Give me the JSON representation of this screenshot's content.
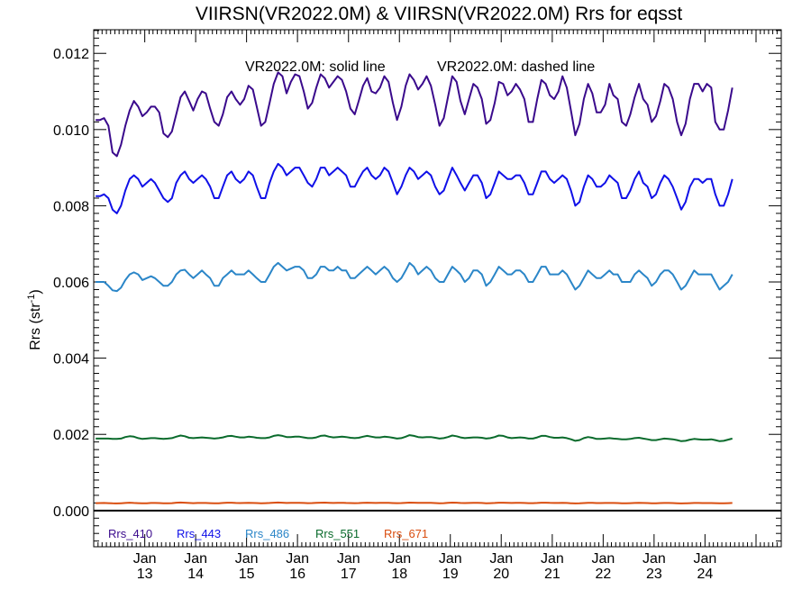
{
  "chart_data": {
    "type": "line",
    "title": "VIIRSN(VR2022.0M) & VIIRSN(VR2022.0M)  Rrs for eqsst",
    "annotation_solid": "VR2022.0M: solid line",
    "annotation_dashed": "VR2022.0M: dashed line",
    "ylabel_main": "Rrs (str",
    "ylabel_sup": "-1",
    "ylabel_close": ")",
    "ylim": [
      -0.00095,
      0.01262
    ],
    "yticks": [
      {
        "value": 0.0,
        "label": "0.000"
      },
      {
        "value": 0.002,
        "label": "0.002"
      },
      {
        "value": 0.004,
        "label": "0.004"
      },
      {
        "value": 0.006,
        "label": "0.006"
      },
      {
        "value": 0.008,
        "label": "0.008"
      },
      {
        "value": 0.01,
        "label": "0.010"
      },
      {
        "value": 0.012,
        "label": "0.012"
      }
    ],
    "xlim": [
      "2012-01-01",
      "2025-07-01"
    ],
    "xticks": [
      {
        "date": "2013-01-01",
        "month": "Jan",
        "year": "13"
      },
      {
        "date": "2014-01-01",
        "month": "Jan",
        "year": "14"
      },
      {
        "date": "2015-01-01",
        "month": "Jan",
        "year": "15"
      },
      {
        "date": "2016-01-01",
        "month": "Jan",
        "year": "16"
      },
      {
        "date": "2017-01-01",
        "month": "Jan",
        "year": "17"
      },
      {
        "date": "2018-01-01",
        "month": "Jan",
        "year": "18"
      },
      {
        "date": "2019-01-01",
        "month": "Jan",
        "year": "19"
      },
      {
        "date": "2020-01-01",
        "month": "Jan",
        "year": "20"
      },
      {
        "date": "2021-01-01",
        "month": "Jan",
        "year": "21"
      },
      {
        "date": "2022-01-01",
        "month": "Jan",
        "year": "22"
      },
      {
        "date": "2023-01-01",
        "month": "Jan",
        "year": "23"
      },
      {
        "date": "2024-01-01",
        "month": "Jan",
        "year": "24"
      }
    ],
    "x_start": "2012-01",
    "grid": false,
    "zero_line": true,
    "legend_position": "bottom-left",
    "series": [
      {
        "name": "Rrs_410",
        "color": "#3a0a8c",
        "values": [
          0.01025,
          0.01025,
          0.0103,
          0.0101,
          0.0094,
          0.0093,
          0.0096,
          0.0101,
          0.0105,
          0.01075,
          0.0106,
          0.01035,
          0.01045,
          0.0106,
          0.0106,
          0.01045,
          0.0099,
          0.0098,
          0.00995,
          0.0104,
          0.01085,
          0.011,
          0.01075,
          0.0105,
          0.0108,
          0.011,
          0.01095,
          0.01055,
          0.0102,
          0.0101,
          0.0104,
          0.01085,
          0.011,
          0.0108,
          0.01065,
          0.0108,
          0.01115,
          0.01105,
          0.0106,
          0.0101,
          0.0102,
          0.0107,
          0.0112,
          0.0115,
          0.0114,
          0.01095,
          0.01125,
          0.01145,
          0.0114,
          0.011,
          0.01055,
          0.0107,
          0.0111,
          0.01145,
          0.01135,
          0.0111,
          0.01125,
          0.0114,
          0.0113,
          0.011,
          0.01055,
          0.0104,
          0.01075,
          0.01115,
          0.01135,
          0.011,
          0.01095,
          0.0111,
          0.0114,
          0.01125,
          0.0107,
          0.01025,
          0.0106,
          0.01115,
          0.01145,
          0.0113,
          0.01105,
          0.0112,
          0.0114,
          0.01115,
          0.01065,
          0.0101,
          0.0103,
          0.01085,
          0.0114,
          0.01125,
          0.01075,
          0.0104,
          0.0108,
          0.0112,
          0.0111,
          0.0108,
          0.01015,
          0.01025,
          0.0107,
          0.01125,
          0.0112,
          0.0109,
          0.011,
          0.0112,
          0.01105,
          0.0108,
          0.0102,
          0.0102,
          0.0108,
          0.0113,
          0.0112,
          0.0109,
          0.0108,
          0.011,
          0.0114,
          0.0111,
          0.0105,
          0.00985,
          0.01015,
          0.0108,
          0.0112,
          0.01095,
          0.01045,
          0.01045,
          0.01065,
          0.0112,
          0.0109,
          0.0108,
          0.0102,
          0.0101,
          0.0104,
          0.01085,
          0.0112,
          0.0108,
          0.01065,
          0.0102,
          0.01035,
          0.01075,
          0.0112,
          0.0111,
          0.0108,
          0.0102,
          0.00985,
          0.01015,
          0.0108,
          0.0112,
          0.0112,
          0.011,
          0.0112,
          0.0111,
          0.0102,
          0.01,
          0.01,
          0.0105,
          0.0111
        ]
      },
      {
        "name": "Rrs_443",
        "color": "#1010e8",
        "values": [
          0.00825,
          0.00825,
          0.0083,
          0.0082,
          0.0079,
          0.0078,
          0.008,
          0.0084,
          0.0087,
          0.0088,
          0.0087,
          0.0085,
          0.0086,
          0.0087,
          0.0086,
          0.0084,
          0.0082,
          0.0081,
          0.0082,
          0.0086,
          0.0088,
          0.0089,
          0.0087,
          0.0086,
          0.0087,
          0.0088,
          0.0087,
          0.0085,
          0.0082,
          0.0082,
          0.0085,
          0.0088,
          0.0089,
          0.0087,
          0.0086,
          0.0087,
          0.0089,
          0.0088,
          0.0085,
          0.0082,
          0.0082,
          0.0086,
          0.0089,
          0.0091,
          0.009,
          0.0088,
          0.0089,
          0.009,
          0.009,
          0.0088,
          0.0086,
          0.0085,
          0.0087,
          0.009,
          0.009,
          0.0088,
          0.0089,
          0.009,
          0.0089,
          0.0088,
          0.0085,
          0.0085,
          0.0087,
          0.0089,
          0.009,
          0.0088,
          0.0087,
          0.0088,
          0.009,
          0.0089,
          0.0086,
          0.0083,
          0.0085,
          0.0088,
          0.009,
          0.0089,
          0.0087,
          0.0088,
          0.0089,
          0.0088,
          0.0085,
          0.0083,
          0.0084,
          0.0087,
          0.009,
          0.0088,
          0.0086,
          0.0084,
          0.0086,
          0.0088,
          0.0088,
          0.0086,
          0.0082,
          0.0083,
          0.0086,
          0.0089,
          0.0088,
          0.0087,
          0.0087,
          0.0088,
          0.0088,
          0.0086,
          0.0083,
          0.0083,
          0.0086,
          0.0089,
          0.0089,
          0.0087,
          0.0086,
          0.0087,
          0.0088,
          0.0087,
          0.0084,
          0.008,
          0.0081,
          0.0085,
          0.0088,
          0.0087,
          0.0085,
          0.0085,
          0.0086,
          0.0088,
          0.0087,
          0.0086,
          0.0082,
          0.0082,
          0.0084,
          0.0087,
          0.0089,
          0.0086,
          0.0085,
          0.0082,
          0.0083,
          0.0086,
          0.0088,
          0.0087,
          0.0085,
          0.0082,
          0.0079,
          0.0081,
          0.0085,
          0.0087,
          0.0087,
          0.0086,
          0.0087,
          0.0087,
          0.0083,
          0.008,
          0.008,
          0.0083,
          0.0087
        ]
      },
      {
        "name": "Rrs_486",
        "color": "#2b86c8",
        "values": [
          0.006,
          0.006,
          0.006,
          0.0059,
          0.00578,
          0.00576,
          0.00585,
          0.00605,
          0.0062,
          0.00625,
          0.0062,
          0.00605,
          0.0061,
          0.00615,
          0.0061,
          0.006,
          0.0059,
          0.0059,
          0.006,
          0.0062,
          0.0063,
          0.00632,
          0.0062,
          0.0061,
          0.0062,
          0.0063,
          0.0062,
          0.0061,
          0.0059,
          0.0059,
          0.0061,
          0.0062,
          0.0063,
          0.0062,
          0.0062,
          0.0062,
          0.0063,
          0.0062,
          0.0061,
          0.006,
          0.006,
          0.0062,
          0.0064,
          0.0065,
          0.0064,
          0.0063,
          0.00635,
          0.0064,
          0.0064,
          0.0063,
          0.0061,
          0.0061,
          0.0062,
          0.0064,
          0.0064,
          0.0063,
          0.0063,
          0.0064,
          0.0063,
          0.0063,
          0.0061,
          0.0061,
          0.0062,
          0.0063,
          0.0064,
          0.0063,
          0.0062,
          0.0063,
          0.0064,
          0.0063,
          0.0061,
          0.006,
          0.0061,
          0.0063,
          0.0065,
          0.0064,
          0.0062,
          0.0063,
          0.0064,
          0.0063,
          0.0061,
          0.006,
          0.006,
          0.0062,
          0.0064,
          0.0063,
          0.0062,
          0.006,
          0.0061,
          0.0063,
          0.0063,
          0.0062,
          0.0059,
          0.006,
          0.0062,
          0.0064,
          0.0063,
          0.0062,
          0.0062,
          0.0063,
          0.0063,
          0.0062,
          0.006,
          0.006,
          0.0062,
          0.0064,
          0.0064,
          0.0062,
          0.0062,
          0.0062,
          0.0063,
          0.0062,
          0.006,
          0.0058,
          0.0059,
          0.0061,
          0.0063,
          0.0062,
          0.0061,
          0.0061,
          0.0062,
          0.0063,
          0.0062,
          0.0062,
          0.006,
          0.006,
          0.006,
          0.0062,
          0.0063,
          0.0062,
          0.0061,
          0.0059,
          0.006,
          0.0062,
          0.0063,
          0.0063,
          0.0062,
          0.006,
          0.0058,
          0.0059,
          0.0061,
          0.0063,
          0.0062,
          0.0062,
          0.0062,
          0.0062,
          0.006,
          0.0058,
          0.0059,
          0.006,
          0.0062
        ]
      },
      {
        "name": "Rrs_551",
        "color": "#0a6b2c",
        "values": [
          0.00189,
          0.00189,
          0.00189,
          0.00189,
          0.00188,
          0.00188,
          0.00189,
          0.00193,
          0.00195,
          0.00194,
          0.0019,
          0.00188,
          0.00189,
          0.0019,
          0.0019,
          0.00189,
          0.00188,
          0.00189,
          0.0019,
          0.00194,
          0.00197,
          0.00195,
          0.00191,
          0.0019,
          0.00191,
          0.00192,
          0.00191,
          0.0019,
          0.00189,
          0.0019,
          0.00192,
          0.00195,
          0.00196,
          0.00194,
          0.00192,
          0.00192,
          0.00194,
          0.00193,
          0.00191,
          0.0019,
          0.0019,
          0.00192,
          0.00196,
          0.00198,
          0.00196,
          0.00193,
          0.00193,
          0.00194,
          0.00194,
          0.00192,
          0.0019,
          0.0019,
          0.00192,
          0.00196,
          0.00197,
          0.00194,
          0.00192,
          0.00193,
          0.00194,
          0.00193,
          0.00191,
          0.0019,
          0.00191,
          0.00194,
          0.00196,
          0.00194,
          0.00192,
          0.00192,
          0.00194,
          0.00193,
          0.00191,
          0.00189,
          0.0019,
          0.00194,
          0.00198,
          0.00196,
          0.00193,
          0.00192,
          0.00193,
          0.00193,
          0.00191,
          0.00189,
          0.0019,
          0.00193,
          0.00197,
          0.00195,
          0.00192,
          0.0019,
          0.00191,
          0.00192,
          0.00192,
          0.00191,
          0.00189,
          0.0019,
          0.00193,
          0.00197,
          0.00196,
          0.00192,
          0.0019,
          0.00191,
          0.00192,
          0.00191,
          0.00189,
          0.00189,
          0.00192,
          0.00196,
          0.00196,
          0.00193,
          0.00191,
          0.00191,
          0.00192,
          0.0019,
          0.00187,
          0.00183,
          0.00185,
          0.0019,
          0.00193,
          0.00191,
          0.00188,
          0.00188,
          0.00189,
          0.0019,
          0.00189,
          0.00188,
          0.00187,
          0.00187,
          0.00188,
          0.0019,
          0.00191,
          0.00189,
          0.00187,
          0.00185,
          0.00185,
          0.00187,
          0.00189,
          0.00188,
          0.00187,
          0.00185,
          0.00182,
          0.00183,
          0.00186,
          0.00188,
          0.00187,
          0.00186,
          0.00186,
          0.00187,
          0.00185,
          0.00182,
          0.00183,
          0.00186,
          0.00189
        ]
      },
      {
        "name": "Rrs_671",
        "color": "#d94e10",
        "values": [
          0.000195,
          0.000196,
          0.000198,
          0.000195,
          0.00019,
          0.000188,
          0.000192,
          0.0002,
          0.000205,
          0.0002,
          0.000195,
          0.00019,
          0.000193,
          0.000198,
          0.0002,
          0.000196,
          0.000192,
          0.00019,
          0.000195,
          0.000205,
          0.00021,
          0.000205,
          0.000198,
          0.000195,
          0.000198,
          0.0002,
          0.000198,
          0.000195,
          0.000192,
          0.000193,
          0.000198,
          0.000205,
          0.000206,
          0.0002,
          0.000197,
          0.000198,
          0.000202,
          0.0002,
          0.000196,
          0.000193,
          0.000194,
          0.0002,
          0.000207,
          0.00021,
          0.000205,
          0.0002,
          0.000201,
          0.000203,
          0.000202,
          0.000198,
          0.000195,
          0.000196,
          0.000201,
          0.000207,
          0.000208,
          0.000203,
          0.0002,
          0.000201,
          0.000203,
          0.0002,
          0.000196,
          0.000194,
          0.000197,
          0.000203,
          0.000207,
          0.000203,
          0.0002,
          0.000201,
          0.000204,
          0.000202,
          0.000197,
          0.000194,
          0.000196,
          0.000203,
          0.000209,
          0.000206,
          0.000201,
          0.000201,
          0.000203,
          0.000201,
          0.000196,
          0.000193,
          0.000195,
          0.000202,
          0.000208,
          0.000205,
          0.0002,
          0.000197,
          0.000199,
          0.000202,
          0.000202,
          0.000198,
          0.000193,
          0.000194,
          0.0002,
          0.000207,
          0.000206,
          0.000201,
          0.000199,
          0.000201,
          0.000202,
          0.000199,
          0.000194,
          0.000194,
          0.0002,
          0.000207,
          0.000207,
          0.000202,
          0.0002,
          0.0002,
          0.000202,
          0.000198,
          0.000193,
          0.000188,
          0.00019,
          0.000197,
          0.000203,
          0.000201,
          0.000197,
          0.000196,
          0.000198,
          0.0002,
          0.000198,
          0.000197,
          0.000193,
          0.000192,
          0.000194,
          0.000199,
          0.000202,
          0.000198,
          0.000196,
          0.000192,
          0.000192,
          0.000196,
          0.0002,
          0.000199,
          0.000196,
          0.000192,
          0.000188,
          0.00019,
          0.000195,
          0.000199,
          0.000198,
          0.000196,
          0.000196,
          0.000197,
          0.000194,
          0.00019,
          0.000191,
          0.000195,
          0.0002
        ]
      }
    ]
  }
}
